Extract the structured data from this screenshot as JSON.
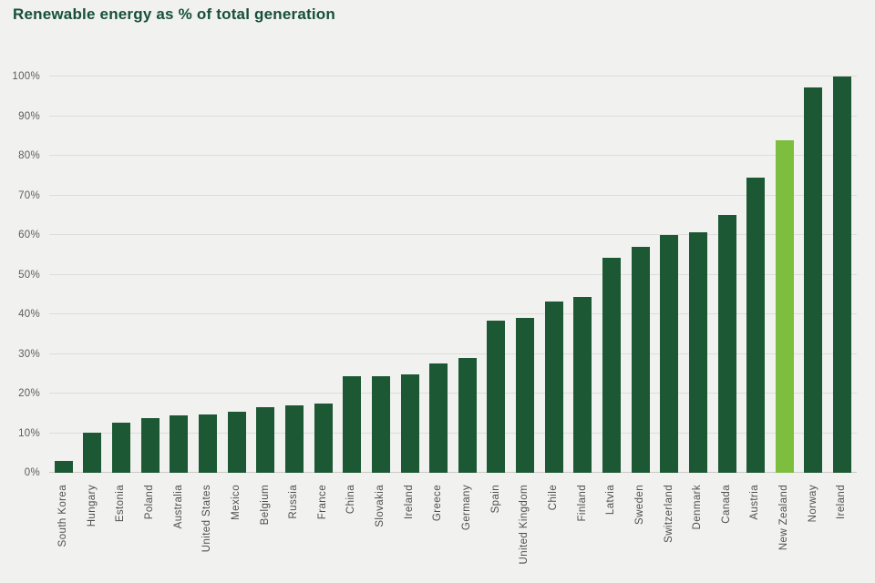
{
  "page": {
    "background": "#f1f1ef"
  },
  "header": {
    "title": "Renewable energy as % of total generation",
    "color": "#16503a"
  },
  "chart_data": {
    "type": "bar",
    "title": "Renewable energy as % of total generation",
    "categories": [
      "South Korea",
      "Hungary",
      "Estonia",
      "Poland",
      "Australia",
      "United States",
      "Mexico",
      "Belgium",
      "Russia",
      "France",
      "China",
      "Slovakia",
      "Ireland",
      "Greece",
      "Germany",
      "Spain",
      "United Kingdom",
      "Chile",
      "Finland",
      "Latvia",
      "Sweden",
      "Switzerland",
      "Denmark",
      "Canada",
      "Austria",
      "New Zealand",
      "Norway",
      "Ireland"
    ],
    "values": [
      3,
      10.2,
      12.7,
      13.8,
      14.5,
      14.7,
      15.3,
      16.6,
      17,
      17.5,
      24.4,
      24.4,
      24.8,
      27.5,
      29,
      38.3,
      39,
      43.3,
      44.3,
      54.2,
      57.1,
      59.9,
      60.6,
      65.1,
      74.4,
      84,
      97.3,
      100
    ],
    "xlabel": "",
    "ylabel": "",
    "ylim": [
      0,
      100
    ],
    "y_ticks": [
      0,
      10,
      20,
      30,
      40,
      50,
      60,
      70,
      80,
      90,
      100
    ],
    "y_tick_suffix": "%",
    "grid": true,
    "legend": "none",
    "highlight_category": "New Zealand",
    "bar_color": "#1b5833",
    "highlight_color": "#7dbe3e",
    "grid_color": "#dddddb",
    "baseline_color": "#c9c9c7",
    "tick_label_color": "#5c5c5c",
    "x_label_color": "#4f4f4f"
  }
}
